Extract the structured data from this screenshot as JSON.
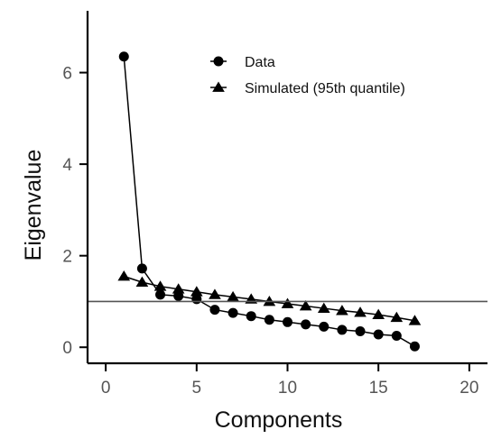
{
  "chart_data": {
    "type": "line",
    "xlabel": "Components",
    "ylabel": "Eigenvalue",
    "xlim": [
      -1,
      21
    ],
    "ylim": [
      -0.35,
      7.35
    ],
    "xticks": [
      0,
      5,
      10,
      15,
      20
    ],
    "yticks": [
      0,
      2,
      4,
      6
    ],
    "reference_line": 1,
    "grid": false,
    "legend_position": "top-right",
    "series": [
      {
        "name": "Data",
        "marker": "circle",
        "color": "#000000",
        "x": [
          1,
          2,
          3,
          4,
          5,
          6,
          7,
          8,
          9,
          10,
          11,
          12,
          13,
          14,
          15,
          16,
          17
        ],
        "y": [
          6.35,
          1.72,
          1.15,
          1.12,
          1.05,
          0.82,
          0.75,
          0.68,
          0.6,
          0.55,
          0.5,
          0.45,
          0.38,
          0.35,
          0.28,
          0.25,
          0.02
        ]
      },
      {
        "name": "Simulated (95th quantile)",
        "marker": "triangle",
        "color": "#000000",
        "x": [
          1,
          2,
          3,
          4,
          5,
          6,
          7,
          8,
          9,
          10,
          11,
          12,
          13,
          14,
          15,
          16,
          17
        ],
        "y": [
          1.55,
          1.42,
          1.33,
          1.27,
          1.21,
          1.15,
          1.1,
          1.05,
          1.0,
          0.95,
          0.9,
          0.85,
          0.8,
          0.76,
          0.71,
          0.65,
          0.58
        ]
      }
    ]
  }
}
